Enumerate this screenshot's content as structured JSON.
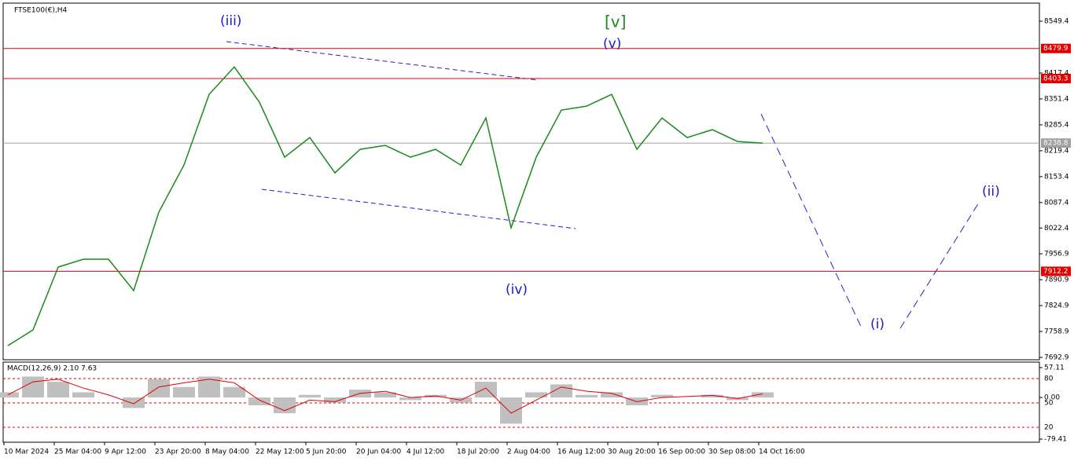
{
  "chart_data": [
    {
      "type": "line",
      "title": "FTSE100(€),H4",
      "categories": [
        "10 Mar 2024",
        null,
        "25 Mar 04:00",
        null,
        "9 Apr 12:00",
        null,
        "23 Apr 20:00",
        null,
        "8 May 04:00",
        null,
        "22 May 12:00",
        null,
        "5 Jun 20:00",
        null,
        "20 Jun 04:00",
        null,
        "4 Jul 12:00",
        null,
        "18 Jul 20:00",
        null,
        "2 Aug 04:00",
        null,
        "16 Aug 12:00",
        null,
        "30 Aug 20:00",
        null,
        "16 Sep 00:00",
        null,
        "30 Sep 08:00",
        null,
        "14 Oct 16:00"
      ],
      "values": [
        7723,
        7763,
        7923,
        7943,
        7943,
        7863,
        8063,
        8183,
        8363,
        8433,
        8343,
        8203,
        8253,
        8163,
        8223,
        8233,
        8203,
        8223,
        8183,
        8303,
        8023,
        8203,
        8323,
        8333,
        8363,
        8223,
        8303,
        8253,
        8273,
        8243,
        8238.8
      ],
      "color": "#1a8a1a",
      "ylim": [
        7686.9,
        8595.4
      ],
      "yticks": [
        8549.4,
        8417.4,
        8351.4,
        8285.4,
        8219.4,
        8153.4,
        8087.4,
        8022.4,
        7956.9,
        7890.9,
        7824.9,
        7758.9,
        7692.9
      ],
      "levels": [
        {
          "value": 8479.9,
          "color": "#e00000"
        },
        {
          "value": 8403.3,
          "color": "#e00000"
        },
        {
          "value": 8238.8,
          "color": "#a0a0a0"
        },
        {
          "value": 7912.2,
          "color": "#e00000"
        }
      ],
      "annotations": [
        "(iii)",
        "[v]",
        "(v)",
        "(iv)",
        "(i)",
        "(ii)"
      ]
    },
    {
      "type": "bar",
      "title": "MACD(12,26,9) 2.10 7.63",
      "values": [
        10,
        40,
        30,
        10,
        0,
        -20,
        35,
        20,
        40,
        20,
        -15,
        -30,
        5,
        -10,
        15,
        10,
        -5,
        5,
        -10,
        30,
        -50,
        10,
        25,
        5,
        10,
        -15,
        5,
        0,
        5,
        -5,
        10
      ],
      "signal": [
        5,
        30,
        35,
        18,
        5,
        -12,
        20,
        28,
        35,
        28,
        -5,
        -25,
        -5,
        -8,
        8,
        12,
        0,
        3,
        -5,
        18,
        -30,
        -5,
        20,
        12,
        8,
        -8,
        0,
        2,
        4,
        -2,
        7
      ],
      "color": "#c0c0c0",
      "signal_color": "#e00000",
      "ylim": [
        -79.41,
        57.11
      ],
      "yticks": [
        {
          "value": 57.11,
          "label": "57.11"
        },
        {
          "value": 0,
          "label": "0.00"
        },
        -79.41
      ],
      "level_labels": [
        "80",
        "50",
        "20"
      ]
    }
  ]
}
